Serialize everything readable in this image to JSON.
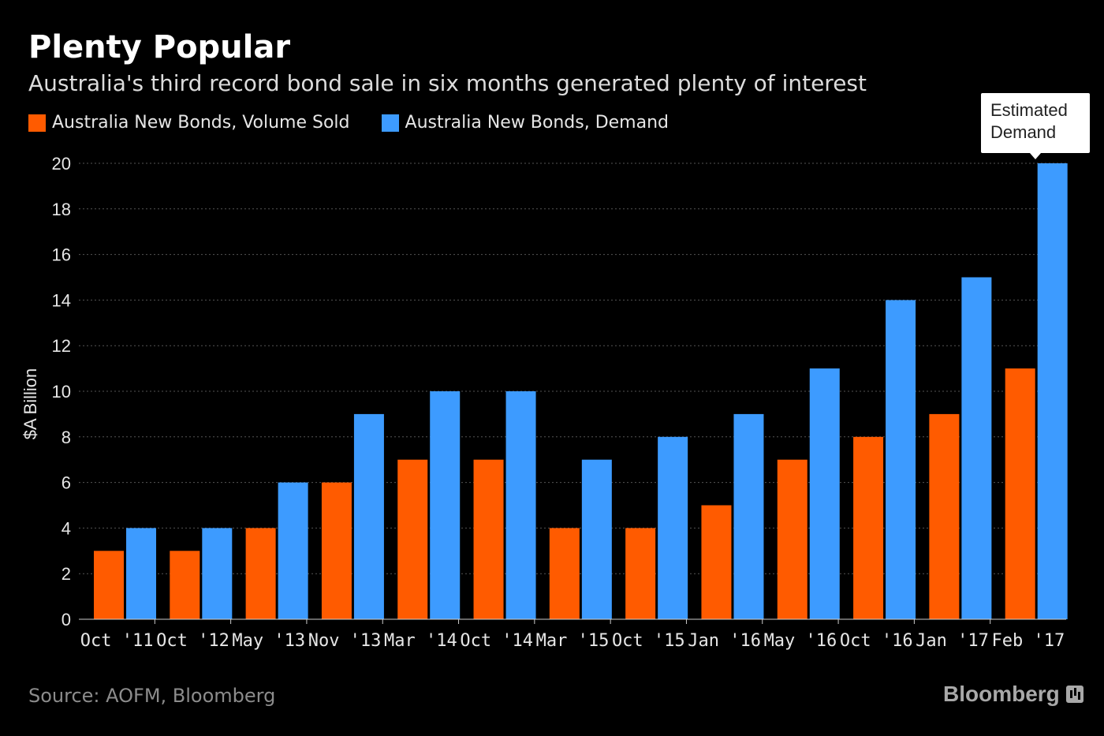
{
  "chart_data": {
    "type": "bar",
    "title": "Plenty Popular",
    "subtitle": "Australia's third record bond sale in six months generated plenty of interest",
    "ylabel": "$A Billion",
    "xlabel": "",
    "ylim": [
      0,
      20
    ],
    "yticks": [
      0,
      2,
      4,
      6,
      8,
      10,
      12,
      14,
      16,
      18,
      20
    ],
    "grid": true,
    "legend_position": "top-left",
    "categories": [
      "Oct '11",
      "Oct '12",
      "May '13",
      "Nov '13",
      "Mar '14",
      "Oct '14",
      "Mar '15",
      "Oct '15",
      "Jan '16",
      "May '16",
      "Oct '16",
      "Jan '17",
      "Feb '17"
    ],
    "series": [
      {
        "name": "Australia New Bonds, Volume Sold",
        "color": "#ff5b00",
        "values": [
          3,
          3,
          4,
          6,
          7,
          7,
          4,
          4,
          5,
          7,
          8,
          9,
          11
        ]
      },
      {
        "name": "Australia New Bonds, Demand",
        "color": "#3d9bff",
        "values": [
          4,
          4,
          6,
          9,
          10,
          10,
          7,
          8,
          9,
          11,
          14,
          15,
          20
        ]
      }
    ],
    "annotation": {
      "text": "Estimated\nDemand",
      "category": "Feb '17",
      "series": "Australia New Bonds, Demand"
    }
  },
  "footer": {
    "source": "Source: AOFM, Bloomberg",
    "brand": "Bloomberg"
  }
}
